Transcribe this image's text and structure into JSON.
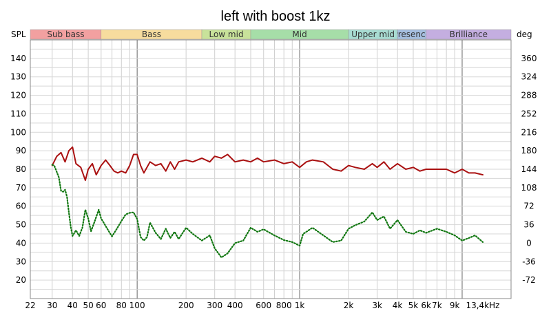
{
  "chart_data": {
    "type": "line",
    "title": "left with boost 1kz",
    "left_unit": "SPL",
    "right_unit": "deg",
    "x_scale": "log",
    "xlim": [
      22,
      20000
    ],
    "ylim": [
      10,
      150
    ],
    "y2lim": [
      -108,
      396
    ],
    "grid": true,
    "x_tick_labels": [
      {
        "value": 22,
        "label": "22"
      },
      {
        "value": 30,
        "label": "30"
      },
      {
        "value": 40,
        "label": "40"
      },
      {
        "value": 50,
        "label": "50"
      },
      {
        "value": 60,
        "label": "60"
      },
      {
        "value": 80,
        "label": "80"
      },
      {
        "value": 100,
        "label": "100"
      },
      {
        "value": 200,
        "label": "200"
      },
      {
        "value": 300,
        "label": "300"
      },
      {
        "value": 400,
        "label": "400"
      },
      {
        "value": 600,
        "label": "600"
      },
      {
        "value": 800,
        "label": "800"
      },
      {
        "value": 1000,
        "label": "1k"
      },
      {
        "value": 2000,
        "label": "2k"
      },
      {
        "value": 3000,
        "label": "3k"
      },
      {
        "value": 4000,
        "label": "4k"
      },
      {
        "value": 5000,
        "label": "5k"
      },
      {
        "value": 6000,
        "label": "6k"
      },
      {
        "value": 7000,
        "label": "7k"
      },
      {
        "value": 9000,
        "label": "9k"
      },
      {
        "value": 13400,
        "label": "13,4kHz"
      }
    ],
    "y_ticks": [
      20,
      30,
      40,
      50,
      60,
      70,
      80,
      90,
      100,
      110,
      120,
      130,
      140
    ],
    "y2_ticks": [
      -72,
      -36,
      0,
      36,
      72,
      108,
      144,
      180,
      216,
      252,
      288,
      324,
      360
    ],
    "bands": [
      {
        "label": "Sub bass",
        "from": 22,
        "to": 60,
        "color": "#f2a0a0"
      },
      {
        "label": "Bass",
        "from": 60,
        "to": 250,
        "color": "#f7dc9e"
      },
      {
        "label": "Low mid",
        "from": 250,
        "to": 500,
        "color": "#c8e29a"
      },
      {
        "label": "Mid",
        "from": 500,
        "to": 2000,
        "color": "#a6dea8"
      },
      {
        "label": "Upper mid",
        "from": 2000,
        "to": 4000,
        "color": "#a8dcd2"
      },
      {
        "label": "Presence",
        "from": 4000,
        "to": 6000,
        "color": "#a6bfe0"
      },
      {
        "label": "Brilliance",
        "from": 6000,
        "to": 20000,
        "color": "#c4aee0"
      }
    ],
    "series": [
      {
        "color": "#aa1111",
        "style": "solid",
        "axis": "left",
        "x": [
          30,
          32,
          34,
          36,
          38,
          40,
          42,
          45,
          48,
          50,
          53,
          56,
          60,
          64,
          68,
          72,
          76,
          80,
          85,
          90,
          95,
          100,
          105,
          110,
          120,
          130,
          140,
          150,
          160,
          170,
          180,
          200,
          220,
          250,
          280,
          300,
          330,
          360,
          400,
          450,
          500,
          550,
          600,
          700,
          800,
          900,
          1000,
          1100,
          1200,
          1400,
          1600,
          1800,
          2000,
          2200,
          2500,
          2800,
          3000,
          3300,
          3600,
          4000,
          4500,
          5000,
          5500,
          6000,
          7000,
          8000,
          9000,
          10000,
          11000,
          12000,
          13400
        ],
        "y": [
          82,
          87,
          89,
          84,
          90,
          92,
          83,
          81,
          74,
          80,
          83,
          77,
          82,
          85,
          82,
          79,
          78,
          79,
          78,
          82,
          88,
          88,
          82,
          78,
          84,
          82,
          83,
          79,
          84,
          80,
          84,
          85,
          84,
          86,
          84,
          87,
          86,
          88,
          84,
          85,
          84,
          86,
          84,
          85,
          83,
          84,
          81,
          84,
          85,
          84,
          80,
          79,
          82,
          81,
          80,
          83,
          81,
          84,
          80,
          83,
          80,
          81,
          79,
          80,
          80,
          80,
          78,
          80,
          78,
          78,
          77
        ]
      },
      {
        "color": "#117711",
        "style": "dotted",
        "axis": "right",
        "x": [
          30,
          31,
          33,
          34,
          35,
          36,
          37,
          38,
          39,
          40,
          42,
          44,
          46,
          48,
          50,
          52,
          55,
          58,
          60,
          63,
          66,
          70,
          75,
          80,
          85,
          90,
          95,
          100,
          105,
          110,
          115,
          120,
          130,
          140,
          150,
          160,
          170,
          180,
          200,
          220,
          250,
          280,
          300,
          330,
          360,
          400,
          450,
          500,
          550,
          600,
          700,
          800,
          900,
          1000,
          1050,
          1100,
          1200,
          1400,
          1600,
          1800,
          2000,
          2200,
          2500,
          2800,
          3000,
          3300,
          3600,
          4000,
          4500,
          5000,
          5500,
          6000,
          7000,
          8000,
          9000,
          10000,
          11000,
          12000,
          13400
        ],
        "y": [
          153,
          150,
          128,
          102,
          100,
          104,
          90,
          60,
          32,
          14,
          25,
          14,
          30,
          65,
          48,
          23,
          44,
          65,
          48,
          37,
          26,
          13,
          28,
          43,
          56,
          59,
          60,
          47,
          12,
          5,
          12,
          40,
          20,
          8,
          28,
          10,
          22,
          8,
          30,
          18,
          5,
          15,
          -10,
          -28,
          -20,
          0,
          5,
          30,
          22,
          27,
          15,
          6,
          2,
          -5,
          18,
          22,
          30,
          15,
          2,
          5,
          28,
          35,
          42,
          60,
          45,
          52,
          28,
          45,
          22,
          18,
          25,
          20,
          28,
          22,
          15,
          5,
          10,
          15,
          2
        ]
      }
    ]
  }
}
